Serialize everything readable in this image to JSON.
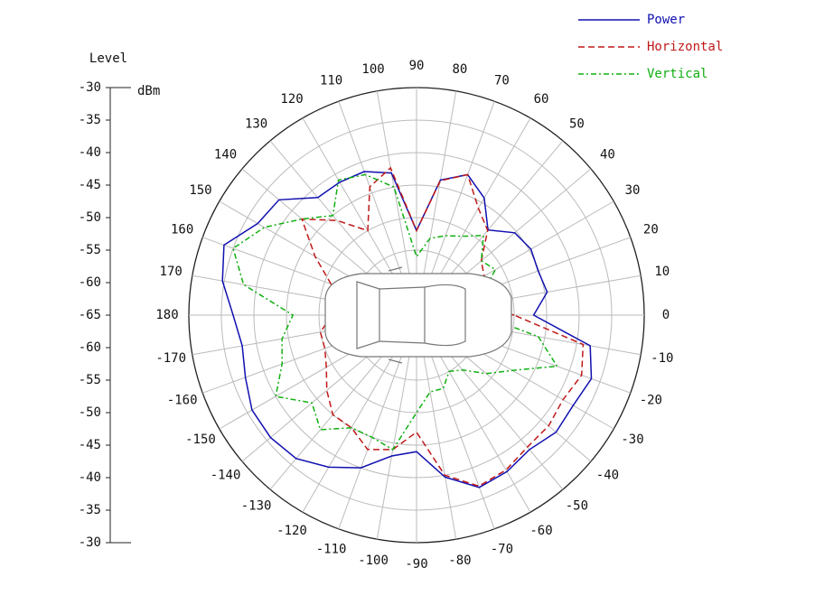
{
  "chart_data": {
    "type": "polar",
    "radial_axis_label": "Level",
    "radial_unit": "dBm",
    "rlim": [
      -65,
      -30
    ],
    "rticks": [
      -65,
      -60,
      -55,
      -50,
      -45,
      -40,
      -35,
      -30
    ],
    "thetaticks": [
      0,
      10,
      20,
      30,
      40,
      50,
      60,
      70,
      80,
      90,
      100,
      110,
      120,
      130,
      140,
      150,
      160,
      170,
      180,
      -170,
      -160,
      -150,
      -140,
      -130,
      -120,
      -110,
      -100,
      -90,
      -80,
      -70,
      -60,
      -50,
      -40,
      -30,
      -20,
      -10
    ],
    "theta": [
      0,
      10,
      20,
      30,
      40,
      50,
      60,
      70,
      80,
      90,
      100,
      110,
      120,
      130,
      140,
      150,
      160,
      170,
      180,
      -170,
      -160,
      -150,
      -140,
      -130,
      -120,
      -110,
      -100,
      -90,
      -80,
      -70,
      -60,
      -50,
      -40,
      -30,
      -20,
      -10
    ],
    "grid": true,
    "legend": "top-right",
    "series": [
      {
        "name": "Power",
        "color": "#1010b0",
        "style": "solid",
        "values": [
          -47,
          -44.6,
          -45.1,
          -44.7,
          -45.3,
          -47.9,
          -44.2,
          -42,
          -43.9,
          -52,
          -42.8,
          -41.5,
          -41.4,
          -41.4,
          -37.4,
          -36.8,
          -33.5,
          -34.7,
          -36.8,
          -37.8,
          -37,
          -35.8,
          -35.7,
          -36.2,
          -38,
          -40,
          -43,
          -44,
          -39.7,
          -36.8,
          -37.2,
          -38,
          -37,
          -37.2,
          -36.4,
          -37.9
        ]
      },
      {
        "name": "Horizontal",
        "color": "#c01818",
        "style": "dashed",
        "values": [
          -50,
          -56,
          -56,
          -53,
          -52,
          -48,
          -46,
          -42,
          -44,
          -52,
          -42,
          -44,
          -50,
          -46,
          -42,
          -47,
          -51,
          -54,
          -52,
          -50,
          -50,
          -49,
          -47,
          -45,
          -45,
          -43,
          -44,
          -47,
          -40,
          -37,
          -37.5,
          -38.5,
          -38.5,
          -39,
          -38,
          -39
        ]
      },
      {
        "name": "Vertical",
        "color": "#10b010",
        "style": "dashdot",
        "values": [
          -55,
          -53,
          -54,
          -51,
          -52,
          -49,
          -51,
          -52,
          -53,
          -56,
          -45,
          -42,
          -41,
          -45,
          -42,
          -38,
          -35,
          -38,
          -46,
          -44,
          -43,
          -40,
          -44,
          -42,
          -45,
          -45,
          -44,
          -50,
          -53,
          -53,
          -55,
          -54,
          -51,
          -48,
          -42,
          -46
        ]
      }
    ]
  }
}
